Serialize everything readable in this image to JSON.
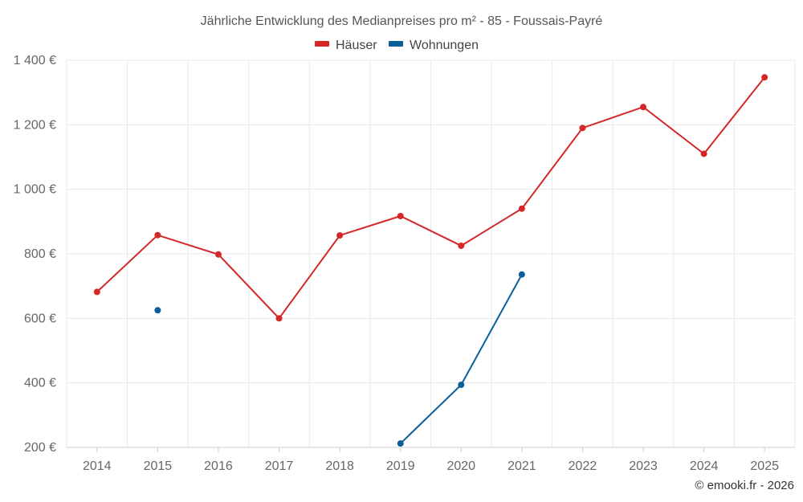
{
  "chart_data": {
    "type": "line",
    "title": "Jährliche Entwicklung des Medianpreises pro m² - 85 - Foussais-Payré",
    "categories": [
      "2014",
      "2015",
      "2016",
      "2017",
      "2018",
      "2019",
      "2020",
      "2021",
      "2022",
      "2023",
      "2024",
      "2025"
    ],
    "ylim": [
      200,
      1400
    ],
    "yticks": [
      200,
      400,
      600,
      800,
      1000,
      1200,
      1400
    ],
    "ytick_labels": [
      "200 €",
      "400 €",
      "600 €",
      "800 €",
      "1 000 €",
      "1 200 €",
      "1 400 €"
    ],
    "grid": true,
    "legend_position": "top-center",
    "xlabel": "",
    "ylabel": "",
    "series": [
      {
        "name": "Häuser",
        "color": "#d62728",
        "values": [
          682,
          858,
          798,
          600,
          857,
          917,
          825,
          940,
          1190,
          1255,
          1110,
          1347
        ]
      },
      {
        "name": "Wohnungen",
        "color": "#0a5f9a",
        "values": [
          null,
          625,
          null,
          null,
          null,
          212,
          394,
          736,
          null,
          null,
          null,
          null
        ]
      }
    ]
  },
  "credit": "© emooki.fr - 2026"
}
